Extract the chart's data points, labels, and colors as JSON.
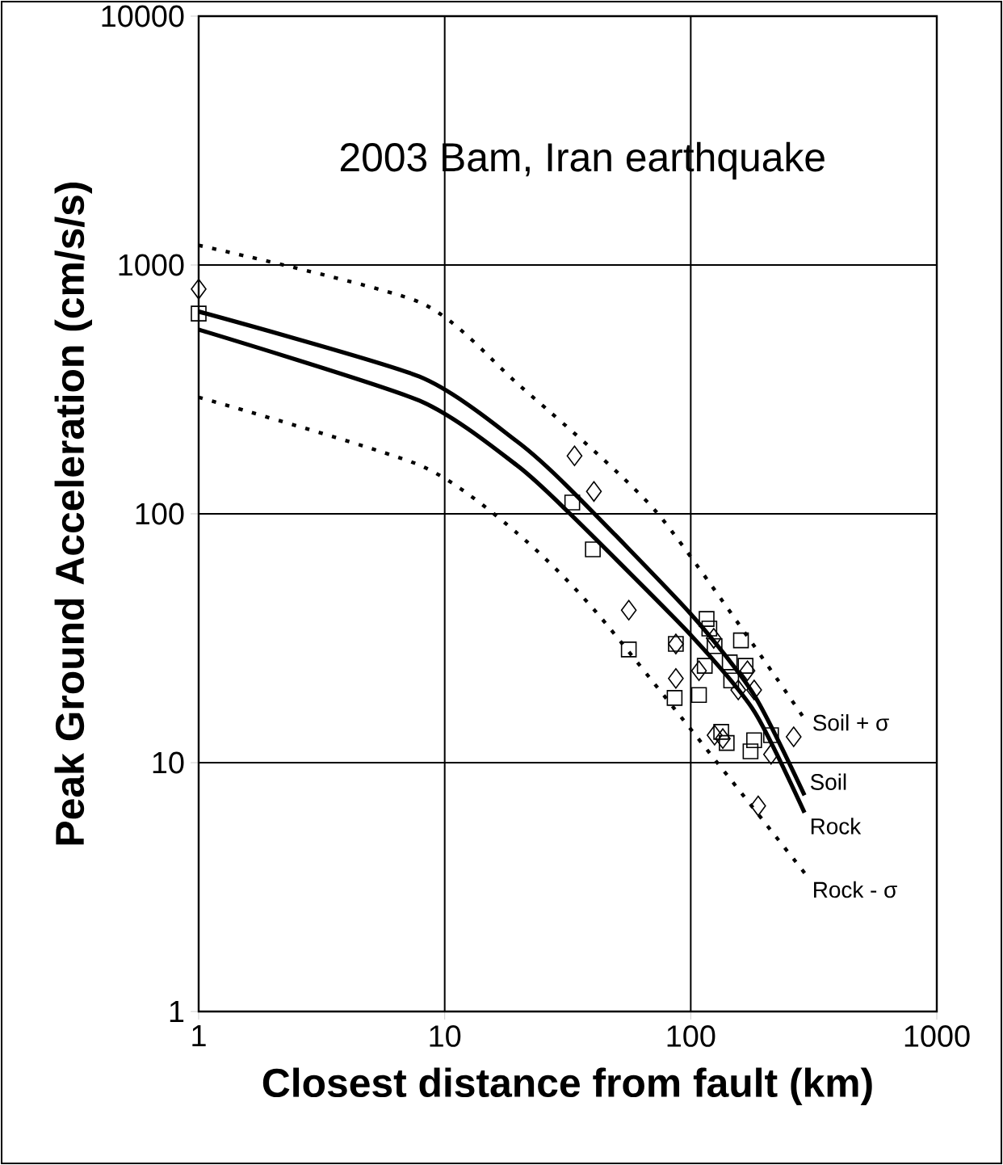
{
  "chart_data": {
    "type": "scatter",
    "title": "2003 Bam, Iran earthquake",
    "xlabel": "Closest distance from fault (km)",
    "ylabel": "Peak Ground Acceleration (cm/s/s)",
    "log": "xy",
    "grid": true,
    "xlim": [
      1,
      1000
    ],
    "ylim": [
      1,
      10000
    ],
    "xticks": [
      1,
      10,
      100,
      1000
    ],
    "yticks": [
      1,
      10,
      100,
      1000,
      10000
    ],
    "series": [
      {
        "name": "Soil + σ",
        "type": "line",
        "line_style": "dotted",
        "marker": "none",
        "color": "#000000",
        "x": [
          1,
          7.9,
          19.6,
          73,
          297
        ],
        "values": [
          1200,
          709,
          336,
          101,
          14.5
        ]
      },
      {
        "name": "Soil",
        "type": "line",
        "line_style": "solid",
        "marker": "none",
        "color": "#000000",
        "x": [
          1,
          7.9,
          19.6,
          32,
          100,
          181,
          290
        ],
        "values": [
          650,
          356,
          196,
          127,
          39.6,
          18.7,
          7.4
        ]
      },
      {
        "name": "Rock",
        "type": "line",
        "line_style": "solid",
        "marker": "none",
        "color": "#000000",
        "x": [
          1,
          7.9,
          19.6,
          32,
          100,
          181,
          290
        ],
        "values": [
          550,
          285,
          157,
          101,
          32.6,
          16.1,
          6.3
        ]
      },
      {
        "name": "Rock - σ",
        "type": "line",
        "line_style": "dotted",
        "marker": "none",
        "color": "#000000",
        "x": [
          1,
          7.9,
          19.6,
          43.6,
          297
        ],
        "values": [
          294,
          157,
          84,
          37.8,
          3.5
        ]
      },
      {
        "marker": "diamond",
        "color": "#000000",
        "x": [
          1,
          33.7,
          40.4,
          56,
          87,
          124,
          170,
          108,
          87,
          156,
          181,
          125,
          135,
          262,
          212,
          188
        ],
        "values": [
          800,
          171,
          123,
          41,
          30,
          31.6,
          23.4,
          23.4,
          21.8,
          19.6,
          19.6,
          12.9,
          12.5,
          12.7,
          10.8,
          6.7
        ]
      },
      {
        "marker": "square",
        "color": "#000000",
        "x": [
          1,
          33,
          40,
          56,
          116,
          119,
          87,
          160,
          125,
          144,
          167,
          114,
          86,
          108,
          146,
          133,
          140,
          181,
          212,
          175
        ],
        "values": [
          638,
          111,
          72,
          28.5,
          37.8,
          34.6,
          30,
          31,
          29.4,
          25.3,
          24.5,
          24.5,
          18.2,
          18.7,
          21.4,
          13.3,
          12,
          12.3,
          12.9,
          11.1
        ]
      }
    ]
  }
}
